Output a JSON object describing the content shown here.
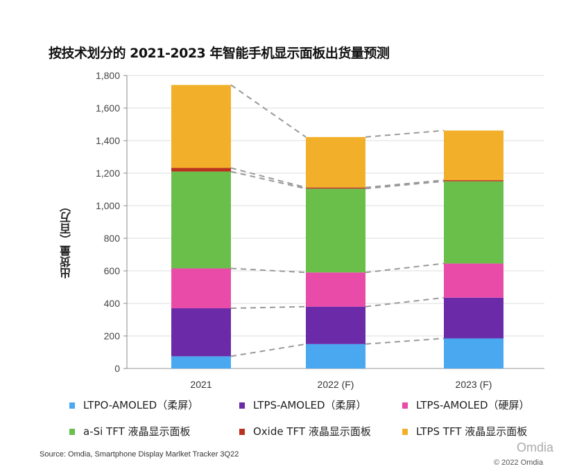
{
  "chart_data": {
    "type": "bar",
    "stacked": true,
    "title": "按技术划分的 2021-2023 年智能手机显示面板出货量预测",
    "xlabel": "",
    "ylabel": "出货量（百万）",
    "ylim": [
      0,
      1800
    ],
    "yticks": [
      "0",
      "200",
      "400",
      "600",
      "800",
      "1,000",
      "1,200",
      "1,400",
      "1,600",
      "1,800"
    ],
    "ytick_values": [
      0,
      200,
      400,
      600,
      800,
      1000,
      1200,
      1400,
      1600,
      1800
    ],
    "grid": true,
    "legend_position": "bottom",
    "connector_lines": "dashed",
    "categories": [
      "2021",
      "2022 (F)",
      "2023 (F)"
    ],
    "series": [
      {
        "name": "LTPO-AMOLED（柔屏）",
        "color": "#4aa8f0",
        "values": [
          75,
          150,
          185
        ]
      },
      {
        "name": "LTPS-AMOLED（柔屏）",
        "color": "#6b2aa8",
        "values": [
          295,
          230,
          250
        ]
      },
      {
        "name": "LTPS-AMOLED（硬屏）",
        "color": "#e84ca8",
        "values": [
          245,
          210,
          210
        ]
      },
      {
        "name": "a-Si TFT 液晶显示面板",
        "color": "#6abf4b",
        "values": [
          595,
          515,
          505
        ]
      },
      {
        "name": "Oxide TFT 液晶显示面板",
        "color": "#b8321e",
        "values": [
          22,
          7,
          7
        ]
      },
      {
        "name": "LTPS TFT 液晶显示面板",
        "color": "#f2b02a",
        "values": [
          510,
          310,
          305
        ]
      }
    ]
  },
  "footer": {
    "source": "Source: Omdia, Smartphone Display Marlket Tracker 3Q22",
    "copyright": "© 2022 Omdia",
    "watermark": "Omdia"
  }
}
